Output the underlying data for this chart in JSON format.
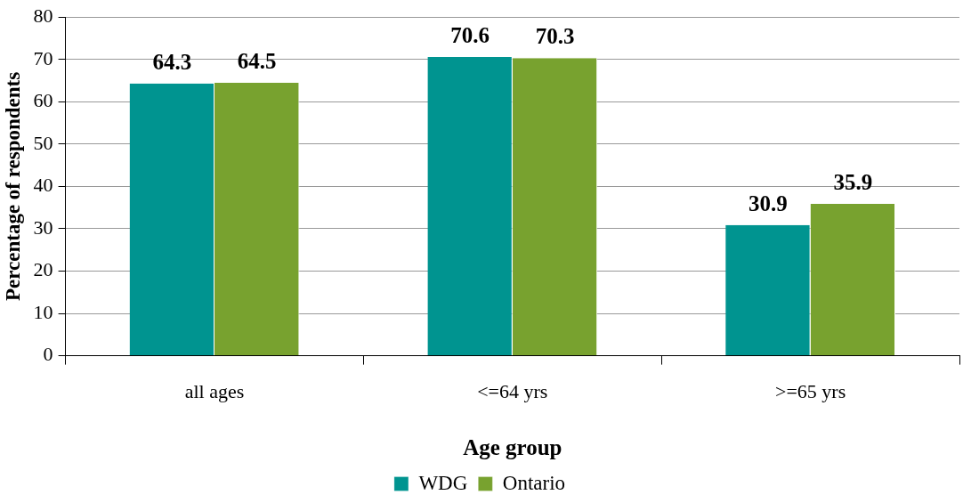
{
  "chart_data": {
    "type": "bar",
    "xlabel": "Age group",
    "ylabel": "Percentage of respondents",
    "categories": [
      "all ages",
      "<=64 yrs",
      ">=65 yrs"
    ],
    "series": [
      {
        "name": "WDG",
        "color": "#009490",
        "values": [
          64.3,
          70.6,
          30.9
        ]
      },
      {
        "name": "Ontario",
        "color": "#78a22f",
        "values": [
          64.5,
          70.3,
          35.9
        ]
      }
    ],
    "ylim": [
      0,
      80
    ],
    "yticks": [
      0,
      10,
      20,
      30,
      40,
      50,
      60,
      70,
      80
    ],
    "grid": "y",
    "legend": "bottom",
    "data_labels": true
  }
}
